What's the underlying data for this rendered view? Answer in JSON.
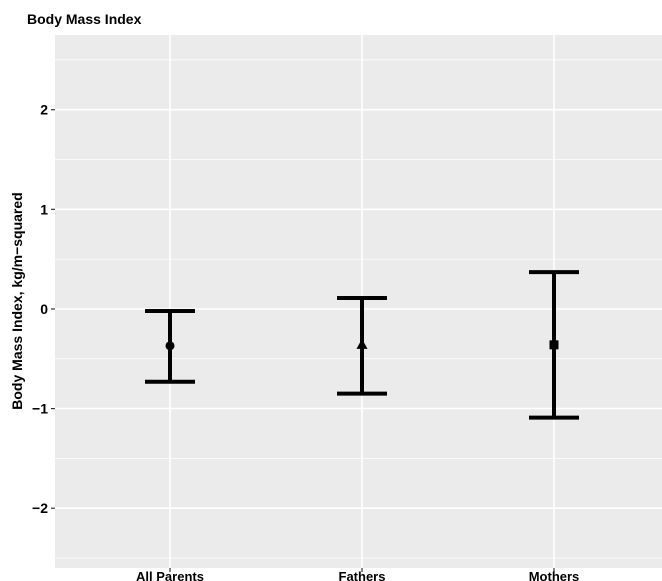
{
  "chart_data": {
    "type": "errorbar",
    "title": "Body Mass Index",
    "xlabel": "",
    "ylabel": "Body Mass Index, kg/m−squared",
    "categories": [
      "All Parents",
      "Fathers",
      "Mothers"
    ],
    "points": [
      {
        "category": "All Parents",
        "estimate": -0.37,
        "lower": -0.73,
        "upper": -0.02,
        "marker": "circle"
      },
      {
        "category": "Fathers",
        "estimate": -0.36,
        "lower": -0.85,
        "upper": 0.11,
        "marker": "triangle"
      },
      {
        "category": "Mothers",
        "estimate": -0.36,
        "lower": -1.09,
        "upper": 0.37,
        "marker": "square"
      }
    ],
    "yticks": [
      2,
      1,
      0,
      -1,
      -2
    ],
    "ytick_labels": [
      "2",
      "1",
      "0",
      "−1",
      "−2"
    ],
    "ylim": [
      -2.6,
      2.75
    ],
    "grid": true,
    "legend": "none",
    "colors": {
      "panel": "#ebebeb",
      "grid": "#ffffff",
      "mark": "#000000",
      "text": "#000000"
    }
  }
}
